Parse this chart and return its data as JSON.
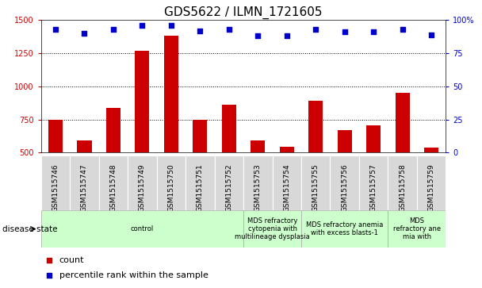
{
  "title": "GDS5622 / ILMN_1721605",
  "samples": [
    "GSM1515746",
    "GSM1515747",
    "GSM1515748",
    "GSM1515749",
    "GSM1515750",
    "GSM1515751",
    "GSM1515752",
    "GSM1515753",
    "GSM1515754",
    "GSM1515755",
    "GSM1515756",
    "GSM1515757",
    "GSM1515758",
    "GSM1515759"
  ],
  "counts": [
    750,
    590,
    835,
    1270,
    1380,
    750,
    860,
    590,
    545,
    890,
    670,
    705,
    950,
    540
  ],
  "percentile_ranks": [
    93,
    90,
    93,
    96,
    96,
    92,
    93,
    88,
    88,
    93,
    91,
    91,
    93,
    89
  ],
  "ylim_left": [
    500,
    1500
  ],
  "ylim_right": [
    0,
    100
  ],
  "yticks_left": [
    500,
    750,
    1000,
    1250,
    1500
  ],
  "yticks_right": [
    0,
    25,
    50,
    75,
    100
  ],
  "disease_groups": [
    {
      "label": "control",
      "start": 0,
      "end": 7,
      "color": "#ccffcc"
    },
    {
      "label": "MDS refractory\ncytopenia with\nmultilineage dysplasia",
      "start": 7,
      "end": 9,
      "color": "#ccffcc"
    },
    {
      "label": "MDS refractory anemia\nwith excess blasts-1",
      "start": 9,
      "end": 12,
      "color": "#ccffcc"
    },
    {
      "label": "MDS\nrefractory ane\nmia with",
      "start": 12,
      "end": 14,
      "color": "#ccffcc"
    }
  ],
  "bar_color": "#cc0000",
  "dot_color": "#0000cc",
  "bar_width": 0.5,
  "title_fontsize": 11,
  "tick_fontsize": 7,
  "tick_color_left": "#cc0000",
  "tick_color_right": "#0000cc",
  "sample_label_fontsize": 6.5,
  "disease_fontsize": 6,
  "legend_fontsize": 8
}
